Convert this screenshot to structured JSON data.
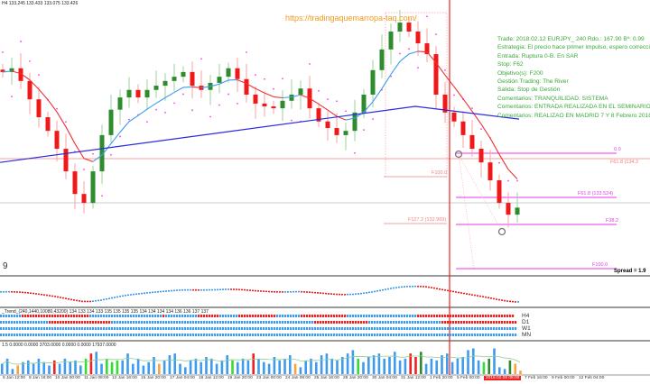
{
  "header": {
    "ohlc": "H4 133.245 133.433 133.075 133.426"
  },
  "watermark_url": "https://tradingaquemarropa-taq.com/",
  "trade_notes": [
    "Trade: 2018.02.12 EURJPY_ 240  Rdo.: 167.90  Bº: 0.99",
    "Estrategia: El precio hace primer impulso, espero corrección",
    "Entrada: Ruptura 0-B. En SAR",
    "Stop: F62",
    "Objetivo(s): F200",
    "Gestión Trading: The River",
    "Salida: Stop de Gestión",
    "Comentarios: TRANQUILIDAD. SISTEMA",
    "Comentarios: ENTRADA REALIZADA EN EL SEMINARIO",
    "Comentarios: REALIZAO EN MADRID 7 Y 8 Febrero 2018"
  ],
  "fib_labels": {
    "f0": "0.0",
    "f618_right": "F61.8 (134.2",
    "f618": "F61.8 (133.524)",
    "f382": "F38.2",
    "f100": "F100.0",
    "f100_left": "F100.0",
    "f1272": "F127.2 (132.969)"
  },
  "main_panel_label": "9",
  "spread_label": "Spread = 1.9",
  "trend_panel": {
    "header": "_Trend_(240,1440,10080,43200) 134 133 134 133 135 135 135 135 134 134 134 134 136 136 137 137",
    "rows": [
      {
        "label": "H4",
        "runs": [
          [
            "b",
            8
          ],
          [
            "r",
            25
          ],
          [
            "b",
            27
          ],
          [
            "r",
            1
          ],
          [
            "b",
            12
          ],
          [
            "r",
            8
          ],
          [
            "b",
            7
          ],
          [
            "r",
            14
          ],
          [
            "b",
            9
          ],
          [
            "r",
            17
          ],
          [
            "b",
            26
          ],
          [
            "r",
            36
          ]
        ]
      },
      {
        "label": "D1",
        "runs": [
          [
            "b",
            18
          ],
          [
            "r",
            23
          ],
          [
            "b",
            75
          ],
          [
            "r",
            20
          ],
          [
            "b",
            27
          ],
          [
            "r",
            28
          ]
        ]
      },
      {
        "label": "W1",
        "runs": [
          [
            "b",
            191
          ]
        ]
      },
      {
        "label": "MN",
        "runs": [
          [
            "b",
            191
          ]
        ]
      }
    ]
  },
  "volume_panel": {
    "header": "1.5 0.0000 0.0000 3703.0000 0.0000 0.0000 17937.0000",
    "values": [
      6,
      9,
      3,
      5,
      7,
      8,
      6,
      9,
      7,
      5,
      8,
      6,
      9,
      7,
      8,
      5,
      9,
      12,
      13,
      6,
      9,
      7,
      8,
      8,
      12,
      6,
      9,
      5,
      7,
      10,
      6,
      8,
      11,
      12,
      6,
      4,
      8,
      9,
      7,
      10,
      9,
      6,
      8,
      11,
      8,
      7,
      9,
      8,
      12,
      9,
      7,
      6,
      10,
      8,
      9,
      11,
      6,
      4,
      8,
      9,
      7,
      11,
      12,
      9,
      8,
      10,
      12,
      14,
      9,
      7,
      10,
      11,
      12,
      9,
      10,
      13,
      8,
      9,
      12,
      10,
      13,
      6,
      9,
      8,
      11,
      12,
      7,
      9,
      10,
      14,
      15,
      8,
      7,
      9,
      15,
      4,
      3,
      8,
      6,
      2
    ],
    "colors": "bbbobbbbbbrbbbbbgrbbgggbbbbbbbobbbbbbbbbbbbbgbbbrbbbbbbbobbbbbbbbbbbgbbbbbbbbbrrkbbbbbbbbbbbgkbbbkoobo",
    "palette": {
      "b": "#3d9bf0",
      "r": "#f02020",
      "g": "#33dd33",
      "k": "#2e8b2e",
      "o": "#f7a440"
    }
  },
  "time_axis": [
    "5 Jan 12:00",
    "8 Jan 16:00",
    "10 Jan 00:00",
    "11 Jan 08:00",
    "12 Jan 16:00",
    "15 Jan 20:00",
    "17 Jan 04:00",
    "18 Jan 12:00",
    "19 Jan 20:00",
    "23 Jan 00:00",
    "24 Jan 08:00",
    "25 Jan 16:00",
    "28 Jan 20:00",
    "30 Jan 04:00",
    "31 Jan 12:00",
    "1 Feb 20:00",
    "5 Feb 00:00",
    "2018.02.06 08:00",
    "7 Feb 16:00",
    "9 Feb 00:00",
    "12 Feb 04:00"
  ],
  "colors": {
    "bull": "#2e8b2e",
    "bear": "#f01818",
    "ema": "#f03030",
    "ema_up": "#3d9bf0",
    "ma_long": "#2a2ae0",
    "sar": "#ee44ee",
    "fib": "#ee33ee",
    "fib_old": "#f7a0a0",
    "cursor": "#f02020"
  },
  "chart_data": {
    "type": "candlestick",
    "title": "EURJPY H4",
    "ylim": [
      131.88,
      137.72
    ],
    "closes": [
      136.19,
      136.27,
      136.0,
      135.61,
      135.23,
      134.94,
      134.56,
      134.08,
      133.6,
      133.41,
      134.08,
      134.85,
      135.39,
      135.65,
      135.81,
      135.65,
      135.81,
      135.9,
      136.0,
      136.09,
      136.19,
      135.9,
      135.81,
      135.96,
      136.09,
      136.27,
      136.04,
      135.71,
      135.52,
      135.46,
      135.42,
      135.58,
      135.71,
      135.84,
      135.42,
      135.14,
      135.0,
      134.85,
      134.94,
      135.33,
      135.71,
      136.23,
      136.67,
      137.05,
      137.24,
      137.05,
      136.8,
      136.57,
      135.71,
      135.33,
      135.14,
      134.85,
      134.56,
      134.27,
      133.89,
      133.41,
      133.16,
      133.31
    ],
    "ma_long": [
      134.27,
      135.46,
      135.19
    ],
    "levels": {
      "f618": 133.524,
      "f1272": 132.969
    }
  }
}
